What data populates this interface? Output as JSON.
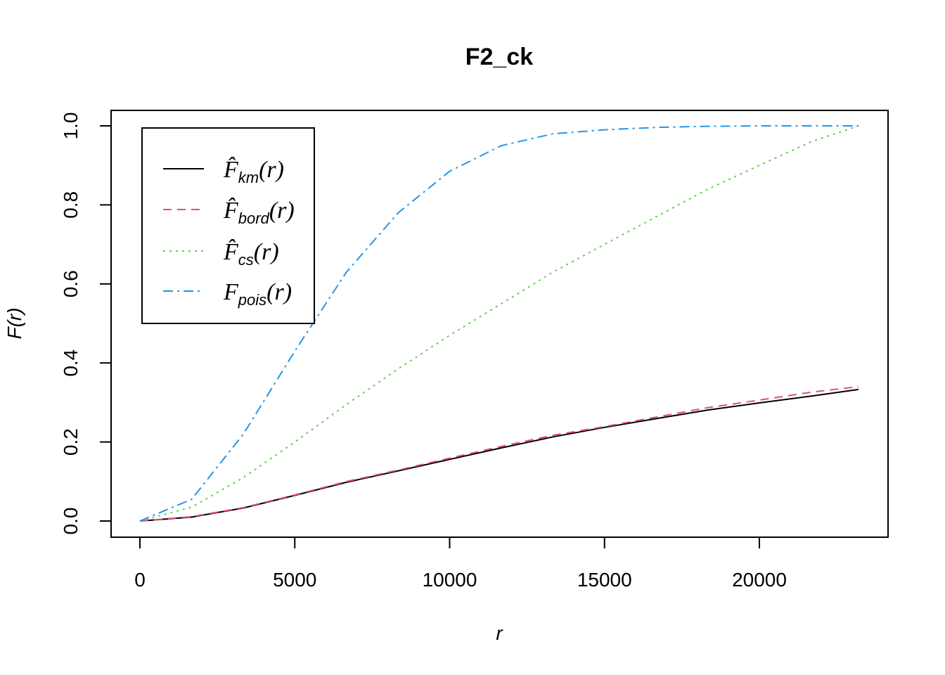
{
  "chart_data": {
    "type": "line",
    "title": "F2_ck",
    "xlabel": "r",
    "ylabel": "F(r)",
    "xlim": [
      0,
      23500
    ],
    "ylim": [
      0,
      1.0
    ],
    "x_ticks": [
      "0",
      "5000",
      "10000",
      "15000",
      "20000"
    ],
    "x_tick_values": [
      0,
      5000,
      10000,
      15000,
      20000
    ],
    "y_ticks": [
      "0.0",
      "0.2",
      "0.4",
      "0.6",
      "0.8",
      "1.0"
    ],
    "y_tick_values": [
      0.0,
      0.2,
      0.4,
      0.6,
      0.8,
      1.0
    ],
    "grid": false,
    "legend_position": "top-left",
    "series": [
      {
        "name": "F̂km(r)",
        "legend_main": "F̂",
        "legend_sub": "km",
        "legend_tail": "(r)",
        "color": "#000000",
        "dash": "none",
        "x": [
          0,
          1670,
          3340,
          5000,
          6670,
          8340,
          10000,
          11670,
          13340,
          15000,
          16670,
          18340,
          20000,
          21670,
          23200
        ],
        "y": [
          0.0,
          0.01,
          0.033,
          0.065,
          0.098,
          0.127,
          0.156,
          0.185,
          0.213,
          0.237,
          0.259,
          0.281,
          0.299,
          0.316,
          0.333
        ]
      },
      {
        "name": "F̂bord(r)",
        "legend_main": "F̂",
        "legend_sub": "bord",
        "legend_tail": "(r)",
        "color": "#DF536B",
        "dash": "12,8",
        "x": [
          0,
          1670,
          3340,
          5000,
          6670,
          8340,
          10000,
          11670,
          13340,
          15000,
          16670,
          18340,
          20000,
          21670,
          23200
        ],
        "y": [
          0.0,
          0.011,
          0.034,
          0.066,
          0.1,
          0.129,
          0.159,
          0.189,
          0.217,
          0.239,
          0.263,
          0.287,
          0.306,
          0.326,
          0.34
        ]
      },
      {
        "name": "F̂cs(r)",
        "legend_main": "F̂",
        "legend_sub": "cs",
        "legend_tail": "(r)",
        "color": "#61D04F",
        "dash": "3,6",
        "x": [
          0,
          1670,
          3340,
          5000,
          6670,
          8340,
          10000,
          11670,
          13340,
          15000,
          16670,
          18340,
          20000,
          21670,
          23200
        ],
        "y": [
          0.0,
          0.035,
          0.11,
          0.2,
          0.295,
          0.385,
          0.47,
          0.55,
          0.63,
          0.7,
          0.77,
          0.84,
          0.9,
          0.96,
          1.0
        ]
      },
      {
        "name": "Fpois(r)",
        "legend_main": "F",
        "legend_sub": "pois",
        "legend_tail": "(r)",
        "color": "#2297E6",
        "dash": "14,6,3,6",
        "x": [
          0,
          1670,
          3340,
          5000,
          6670,
          8340,
          10000,
          11670,
          13340,
          15000,
          16670,
          18340,
          20000,
          21670,
          23200
        ],
        "y": [
          0.0,
          0.055,
          0.22,
          0.43,
          0.63,
          0.78,
          0.885,
          0.95,
          0.98,
          0.99,
          0.996,
          0.999,
          1.0,
          1.0,
          1.0
        ]
      }
    ]
  }
}
